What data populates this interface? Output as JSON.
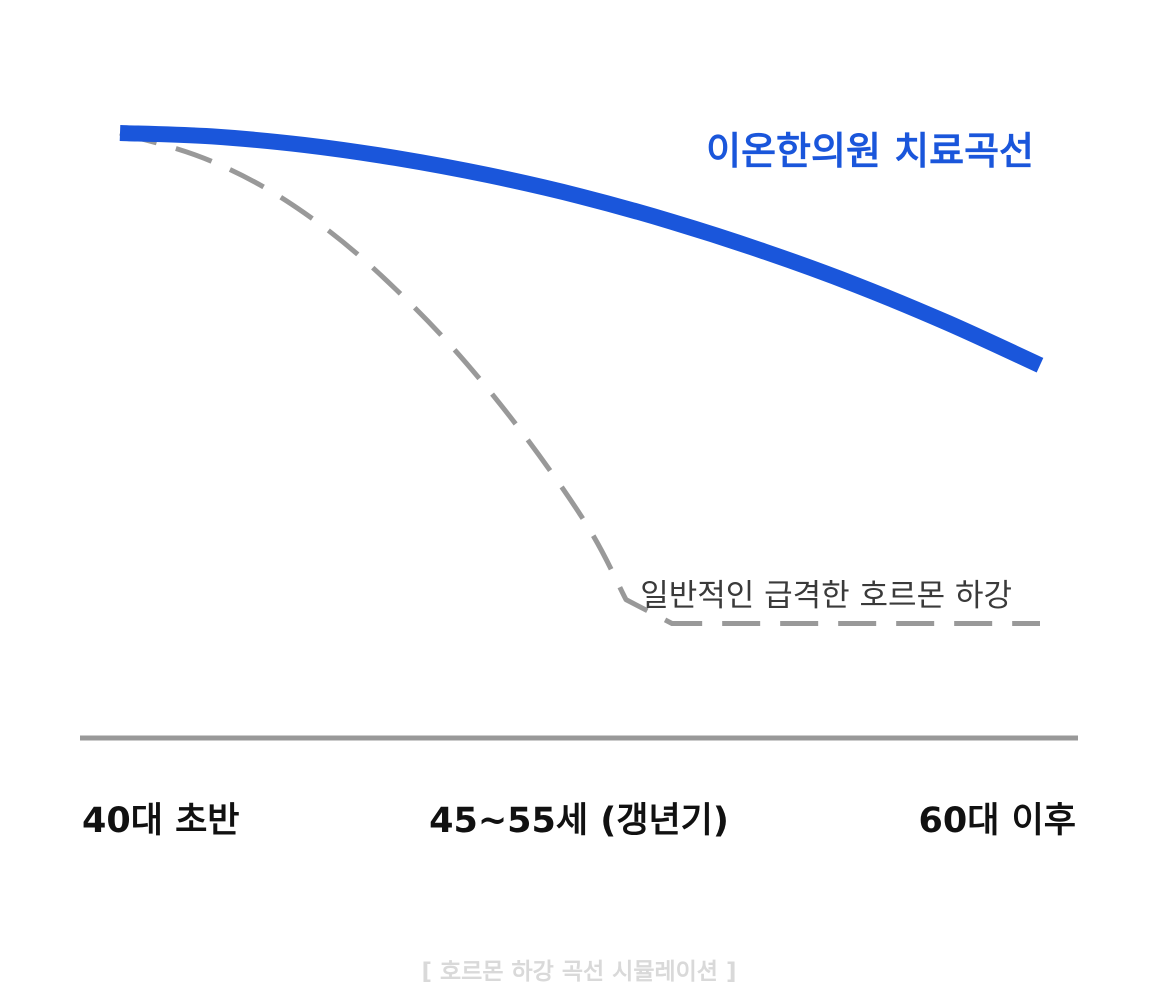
{
  "chart_data": {
    "type": "line",
    "title": "",
    "caption": "[ 호르몬 하강 곡선 시뮬레이션 ]",
    "xlabel": "",
    "ylabel": "",
    "categories": [
      "40대 초반",
      "45~55세 (갱년기)",
      "60대 이후"
    ],
    "x_range": [
      0,
      100
    ],
    "y_range": [
      0,
      100
    ],
    "grid": false,
    "series": [
      {
        "name": "이온한의원 치료곡선",
        "color": "#1a56db",
        "style": "solid",
        "x": [
          0,
          10,
          20,
          30,
          40,
          50,
          60,
          70,
          80,
          90,
          100
        ],
        "y": [
          100,
          99.4,
          97.9,
          95.6,
          92.6,
          88.9,
          84.4,
          79.2,
          73.3,
          66.6,
          59.2
        ]
      },
      {
        "name": "일반적인 급격한 호르몬 하강",
        "color": "#999999",
        "style": "dashed",
        "x": [
          0,
          10,
          20,
          30,
          40,
          50,
          55,
          60,
          70,
          80,
          90,
          100
        ],
        "y": [
          100,
          95,
          86,
          72.5,
          55,
          33,
          18,
          13.8,
          13.8,
          13.8,
          13.8,
          13.8
        ]
      }
    ],
    "axis_color": "#999999"
  }
}
